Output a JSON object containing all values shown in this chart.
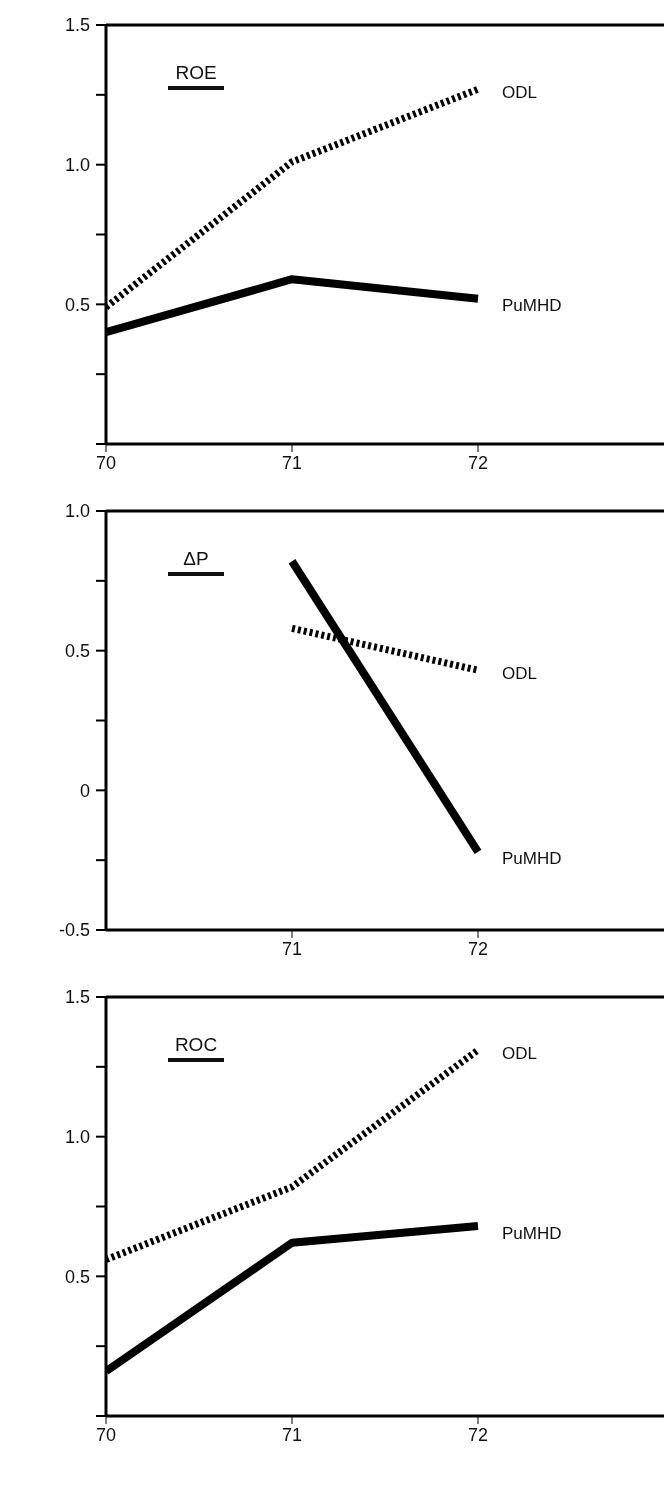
{
  "chart_data": [
    {
      "type": "line",
      "title": "ROE",
      "x": [
        70,
        71,
        72
      ],
      "xlim": [
        70,
        73
      ],
      "xticks": [
        70,
        71,
        72
      ],
      "ylim": [
        0,
        1.5
      ],
      "yticks": [
        {
          "value": 0,
          "label": null
        },
        {
          "value": 0.25,
          "label": null
        },
        0.5,
        {
          "value": 0.75,
          "label": null
        },
        {
          "value": 1,
          "label": "1.0"
        },
        {
          "value": 1.25,
          "label": null
        },
        1.5
      ],
      "grid": false,
      "legend": false,
      "marker": "none",
      "series": [
        {
          "name": "ODL",
          "color": "#000000",
          "line_style": "dashed",
          "values": [
            0.49,
            1.01,
            1.27
          ]
        },
        {
          "name": "PuMHD",
          "color": "#000000",
          "line_style": "solid",
          "values": [
            0.4,
            0.59,
            0.52
          ]
        }
      ]
    },
    {
      "type": "line",
      "title": "ΔP",
      "x": [
        71,
        72
      ],
      "xlim": [
        70,
        73
      ],
      "xticks": [
        71,
        72
      ],
      "ylim": [
        -0.5,
        1.0
      ],
      "yticks": [
        -0.5,
        {
          "value": -0.25,
          "label": null
        },
        0,
        {
          "value": 0.25,
          "label": null
        },
        0.5,
        {
          "value": 0.75,
          "label": null
        },
        {
          "value": 1,
          "label": "1.0"
        }
      ],
      "grid": false,
      "legend": false,
      "marker": "none",
      "series": [
        {
          "name": "ODL",
          "color": "#000000",
          "line_style": "dashed",
          "values": [
            0.58,
            0.43
          ]
        },
        {
          "name": "PuMHD",
          "color": "#000000",
          "line_style": "solid",
          "values": [
            0.82,
            -0.22
          ]
        }
      ]
    },
    {
      "type": "line",
      "title": "ROC",
      "x": [
        70,
        71,
        72
      ],
      "xlim": [
        70,
        73
      ],
      "xticks": [
        70,
        71,
        72
      ],
      "ylim": [
        0,
        1.5
      ],
      "yticks": [
        {
          "value": 0,
          "label": null
        },
        {
          "value": 0.25,
          "label": null
        },
        0.5,
        {
          "value": 0.75,
          "label": null
        },
        {
          "value": 1,
          "label": "1.0"
        },
        {
          "value": 1.25,
          "label": null
        },
        1.5
      ],
      "grid": false,
      "legend": false,
      "marker": "none",
      "series": [
        {
          "name": "ODL",
          "color": "#000000",
          "line_style": "dashed",
          "values": [
            0.56,
            0.82,
            1.31
          ]
        },
        {
          "name": "PuMHD",
          "color": "#000000",
          "line_style": "solid",
          "values": [
            0.16,
            0.62,
            0.68
          ]
        }
      ]
    }
  ]
}
